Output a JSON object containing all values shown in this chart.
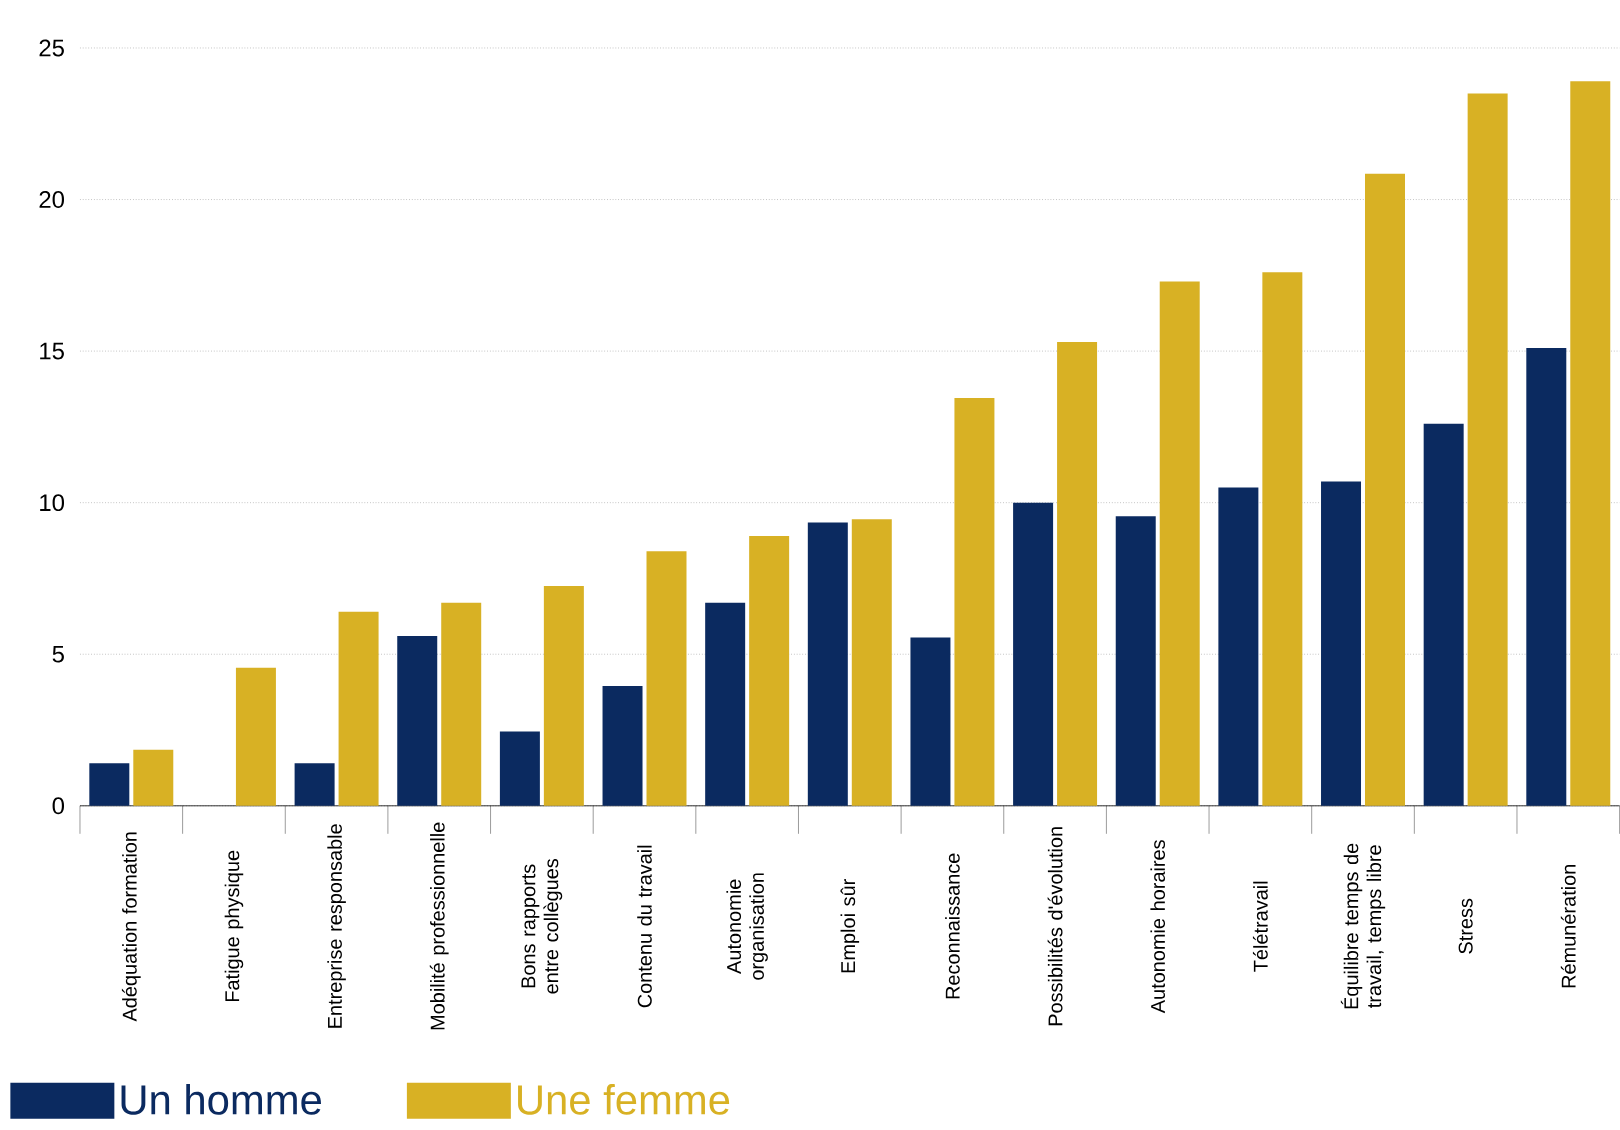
{
  "chart_data": {
    "type": "bar",
    "categories": [
      "Adéquation formation",
      "Fatigue physique",
      "Entreprise responsable",
      "Mobilité professionnelle",
      "Bons rapports entre collègues",
      "Contenu du travail",
      "Autonomie organisation",
      "Emploi sûr",
      "Reconnaissance",
      "Possibilités d'évolution",
      "Autonomie horaires",
      "Télétravail",
      "Équilibre temps de travail, temps libre",
      "Stress",
      "Rémunération"
    ],
    "series": [
      {
        "name": "Un homme",
        "color": "#0b2a60",
        "values": [
          1.4,
          0,
          1.4,
          5.6,
          2.45,
          3.95,
          6.7,
          9.35,
          5.55,
          10.0,
          9.55,
          10.5,
          10.7,
          12.6,
          15.1
        ]
      },
      {
        "name": "Une femme",
        "color": "#d8b124",
        "values": [
          1.85,
          4.55,
          6.4,
          6.7,
          7.25,
          8.4,
          8.9,
          9.45,
          13.45,
          15.3,
          17.3,
          17.6,
          20.85,
          23.5,
          23.9
        ]
      }
    ],
    "ylim": [
      0,
      25
    ],
    "yticks": [
      0,
      5,
      10,
      15,
      20,
      25
    ],
    "grid": "y",
    "legend": "bottom"
  }
}
